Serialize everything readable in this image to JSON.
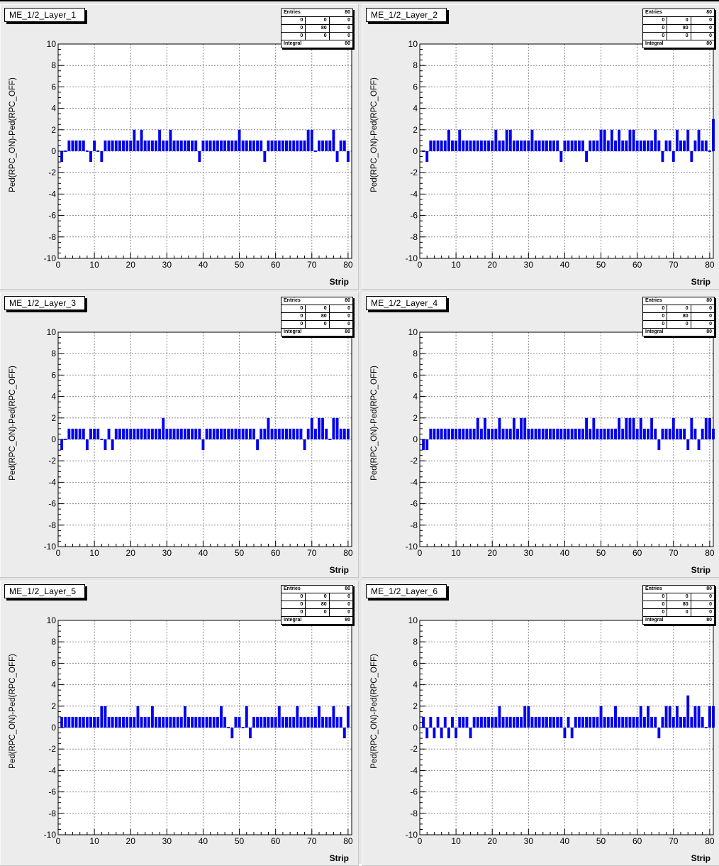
{
  "axis": {
    "xlabel": "Strip",
    "ylabel": "Ped(RPC_ON)-Ped(RPC_OFF)",
    "xlim": [
      0,
      81
    ],
    "ylim": [
      -10,
      10
    ],
    "xticks": [
      0,
      10,
      20,
      30,
      40,
      50,
      60,
      70,
      80
    ],
    "yticks": [
      -10,
      -8,
      -6,
      -4,
      -2,
      0,
      2,
      4,
      6,
      8,
      10
    ],
    "grid": true
  },
  "stats_box": {
    "entries_label": "Entries",
    "entries_value": "80",
    "grid": [
      [
        "0",
        "0",
        "0"
      ],
      [
        "0",
        "80",
        "0"
      ],
      [
        "0",
        "0",
        "0"
      ]
    ],
    "integral_label": "Integral",
    "integral_value": "80"
  },
  "colors": {
    "bar": "#0000ee",
    "grid": "#8c8c8c",
    "frame": "#000000"
  },
  "chart_data": [
    {
      "type": "bar",
      "title": "ME_1/2_Layer_1",
      "xlabel": "Strip",
      "ylabel": "Ped(RPC_ON)-Ped(RPC_OFF)",
      "ylim": [
        -10,
        10
      ],
      "x": [
        1,
        2,
        3,
        4,
        5,
        6,
        7,
        8,
        9,
        10,
        11,
        12,
        13,
        14,
        15,
        16,
        17,
        18,
        19,
        20,
        21,
        22,
        23,
        24,
        25,
        26,
        27,
        28,
        29,
        30,
        31,
        32,
        33,
        34,
        35,
        36,
        37,
        38,
        39,
        40,
        41,
        42,
        43,
        44,
        45,
        46,
        47,
        48,
        49,
        50,
        51,
        52,
        53,
        54,
        55,
        56,
        57,
        58,
        59,
        60,
        61,
        62,
        63,
        64,
        65,
        66,
        67,
        68,
        69,
        70,
        71,
        72,
        73,
        74,
        75,
        76,
        77,
        78,
        79,
        80
      ],
      "values": [
        -1,
        0,
        1,
        1,
        1,
        1,
        1,
        0,
        -1,
        1,
        0,
        -1,
        1,
        1,
        1,
        1,
        1,
        1,
        1,
        1,
        2,
        1,
        2,
        1,
        1,
        1,
        1,
        2,
        1,
        1,
        2,
        1,
        1,
        1,
        1,
        1,
        1,
        1,
        -1,
        1,
        1,
        1,
        1,
        1,
        1,
        1,
        1,
        1,
        1,
        2,
        1,
        1,
        1,
        1,
        1,
        1,
        -1,
        1,
        1,
        1,
        1,
        1,
        1,
        1,
        1,
        1,
        1,
        1,
        2,
        2,
        0,
        1,
        1,
        1,
        1,
        2,
        -1,
        1,
        1,
        -1
      ]
    },
    {
      "type": "bar",
      "title": "ME_1/2_Layer_2",
      "xlabel": "Strip",
      "ylabel": "Ped(RPC_ON)-Ped(RPC_OFF)",
      "ylim": [
        -10,
        10
      ],
      "x": [
        1,
        2,
        3,
        4,
        5,
        6,
        7,
        8,
        9,
        10,
        11,
        12,
        13,
        14,
        15,
        16,
        17,
        18,
        19,
        20,
        21,
        22,
        23,
        24,
        25,
        26,
        27,
        28,
        29,
        30,
        31,
        32,
        33,
        34,
        35,
        36,
        37,
        38,
        39,
        40,
        41,
        42,
        43,
        44,
        45,
        46,
        47,
        48,
        49,
        50,
        51,
        52,
        53,
        54,
        55,
        56,
        57,
        58,
        59,
        60,
        61,
        62,
        63,
        64,
        65,
        66,
        67,
        68,
        69,
        70,
        71,
        72,
        73,
        74,
        75,
        76,
        77,
        78,
        79,
        80,
        81
      ],
      "values": [
        0,
        -1,
        1,
        1,
        1,
        1,
        1,
        2,
        1,
        1,
        2,
        1,
        1,
        1,
        1,
        1,
        1,
        1,
        1,
        1,
        2,
        1,
        1,
        2,
        2,
        1,
        1,
        1,
        1,
        1,
        2,
        1,
        1,
        1,
        1,
        1,
        1,
        1,
        -1,
        1,
        1,
        1,
        1,
        1,
        1,
        -1,
        1,
        1,
        1,
        2,
        2,
        1,
        2,
        1,
        2,
        1,
        1,
        2,
        2,
        1,
        1,
        1,
        1,
        1,
        2,
        1,
        -1,
        1,
        1,
        -1,
        2,
        1,
        1,
        2,
        -1,
        1,
        2,
        1,
        1,
        0,
        3
      ]
    },
    {
      "type": "bar",
      "title": "ME_1/2_Layer_3",
      "xlabel": "Strip",
      "ylabel": "Ped(RPC_ON)-Ped(RPC_OFF)",
      "ylim": [
        -10,
        10
      ],
      "x": [
        1,
        2,
        3,
        4,
        5,
        6,
        7,
        8,
        9,
        10,
        11,
        12,
        13,
        14,
        15,
        16,
        17,
        18,
        19,
        20,
        21,
        22,
        23,
        24,
        25,
        26,
        27,
        28,
        29,
        30,
        31,
        32,
        33,
        34,
        35,
        36,
        37,
        38,
        39,
        40,
        41,
        42,
        43,
        44,
        45,
        46,
        47,
        48,
        49,
        50,
        51,
        52,
        53,
        54,
        55,
        56,
        57,
        58,
        59,
        60,
        61,
        62,
        63,
        64,
        65,
        66,
        67,
        68,
        69,
        70,
        71,
        72,
        73,
        74,
        75,
        76,
        77,
        78,
        79,
        80
      ],
      "values": [
        -1,
        0,
        1,
        1,
        1,
        1,
        1,
        -1,
        1,
        1,
        1,
        0,
        -1,
        1,
        -1,
        1,
        1,
        1,
        1,
        1,
        1,
        1,
        1,
        1,
        1,
        1,
        1,
        1,
        2,
        1,
        1,
        1,
        1,
        1,
        1,
        1,
        1,
        1,
        1,
        -1,
        1,
        1,
        1,
        1,
        1,
        1,
        1,
        1,
        1,
        1,
        1,
        1,
        1,
        1,
        -1,
        1,
        1,
        2,
        1,
        1,
        1,
        1,
        1,
        1,
        1,
        1,
        1,
        -1,
        1,
        2,
        1,
        2,
        2,
        1,
        0,
        2,
        2,
        1,
        1,
        1
      ]
    },
    {
      "type": "bar",
      "title": "ME_1/2_Layer_4",
      "xlabel": "Strip",
      "ylabel": "Ped(RPC_ON)-Ped(RPC_OFF)",
      "ylim": [
        -10,
        10
      ],
      "x": [
        1,
        2,
        3,
        4,
        5,
        6,
        7,
        8,
        9,
        10,
        11,
        12,
        13,
        14,
        15,
        16,
        17,
        18,
        19,
        20,
        21,
        22,
        23,
        24,
        25,
        26,
        27,
        28,
        29,
        30,
        31,
        32,
        33,
        34,
        35,
        36,
        37,
        38,
        39,
        40,
        41,
        42,
        43,
        44,
        45,
        46,
        47,
        48,
        49,
        50,
        51,
        52,
        53,
        54,
        55,
        56,
        57,
        58,
        59,
        60,
        61,
        62,
        63,
        64,
        65,
        66,
        67,
        68,
        69,
        70,
        71,
        72,
        73,
        74,
        75,
        76,
        77,
        78,
        79,
        80,
        81
      ],
      "values": [
        -1,
        -1,
        1,
        1,
        1,
        1,
        1,
        1,
        1,
        1,
        1,
        1,
        1,
        1,
        1,
        2,
        1,
        2,
        1,
        1,
        1,
        2,
        1,
        1,
        1,
        2,
        1,
        2,
        2,
        1,
        1,
        1,
        1,
        1,
        1,
        1,
        1,
        1,
        1,
        1,
        1,
        1,
        1,
        1,
        1,
        2,
        1,
        2,
        1,
        1,
        1,
        1,
        1,
        1,
        2,
        1,
        2,
        2,
        2,
        1,
        2,
        1,
        1,
        2,
        1,
        -1,
        1,
        1,
        1,
        2,
        1,
        1,
        1,
        -1,
        2,
        1,
        -1,
        1,
        2,
        2,
        1
      ]
    },
    {
      "type": "bar",
      "title": "ME_1/2_Layer_5",
      "xlabel": "Strip",
      "ylabel": "Ped(RPC_ON)-Ped(RPC_OFF)",
      "ylim": [
        -10,
        10
      ],
      "x": [
        1,
        2,
        3,
        4,
        5,
        6,
        7,
        8,
        9,
        10,
        11,
        12,
        13,
        14,
        15,
        16,
        17,
        18,
        19,
        20,
        21,
        22,
        23,
        24,
        25,
        26,
        27,
        28,
        29,
        30,
        31,
        32,
        33,
        34,
        35,
        36,
        37,
        38,
        39,
        40,
        41,
        42,
        43,
        44,
        45,
        46,
        47,
        48,
        49,
        50,
        51,
        52,
        53,
        54,
        55,
        56,
        57,
        58,
        59,
        60,
        61,
        62,
        63,
        64,
        65,
        66,
        67,
        68,
        69,
        70,
        71,
        72,
        73,
        74,
        75,
        76,
        77,
        78,
        79,
        80
      ],
      "values": [
        1,
        1,
        1,
        1,
        1,
        1,
        1,
        1,
        1,
        1,
        1,
        2,
        2,
        1,
        1,
        1,
        1,
        1,
        1,
        1,
        1,
        2,
        1,
        1,
        1,
        2,
        1,
        1,
        1,
        1,
        1,
        1,
        1,
        1,
        2,
        1,
        1,
        1,
        1,
        1,
        1,
        1,
        1,
        1,
        2,
        1,
        0,
        -1,
        1,
        1,
        0,
        2,
        -1,
        1,
        1,
        1,
        1,
        1,
        1,
        1,
        2,
        1,
        1,
        1,
        1,
        2,
        1,
        1,
        1,
        1,
        1,
        2,
        1,
        1,
        1,
        2,
        1,
        1,
        -1,
        2
      ]
    },
    {
      "type": "bar",
      "title": "ME_1/2_Layer_6",
      "xlabel": "Strip",
      "ylabel": "Ped(RPC_ON)-Ped(RPC_OFF)",
      "ylim": [
        -10,
        10
      ],
      "x": [
        1,
        2,
        3,
        4,
        5,
        6,
        7,
        8,
        9,
        10,
        11,
        12,
        13,
        14,
        15,
        16,
        17,
        18,
        19,
        20,
        21,
        22,
        23,
        24,
        25,
        26,
        27,
        28,
        29,
        30,
        31,
        32,
        33,
        34,
        35,
        36,
        37,
        38,
        39,
        40,
        41,
        42,
        43,
        44,
        45,
        46,
        47,
        48,
        49,
        50,
        51,
        52,
        53,
        54,
        55,
        56,
        57,
        58,
        59,
        60,
        61,
        62,
        63,
        64,
        65,
        66,
        67,
        68,
        69,
        70,
        71,
        72,
        73,
        74,
        75,
        76,
        77,
        78,
        79,
        80,
        81
      ],
      "values": [
        1,
        -1,
        1,
        -1,
        1,
        -1,
        1,
        -1,
        1,
        -1,
        1,
        1,
        1,
        -1,
        1,
        1,
        1,
        1,
        1,
        1,
        1,
        2,
        1,
        1,
        1,
        1,
        1,
        1,
        2,
        2,
        1,
        1,
        1,
        1,
        1,
        1,
        1,
        1,
        1,
        -1,
        1,
        -1,
        1,
        1,
        1,
        1,
        1,
        1,
        1,
        2,
        1,
        1,
        1,
        2,
        1,
        1,
        1,
        1,
        1,
        1,
        2,
        1,
        2,
        1,
        1,
        -1,
        1,
        2,
        2,
        1,
        2,
        1,
        1,
        3,
        1,
        2,
        2,
        1,
        0,
        2,
        2
      ]
    }
  ]
}
